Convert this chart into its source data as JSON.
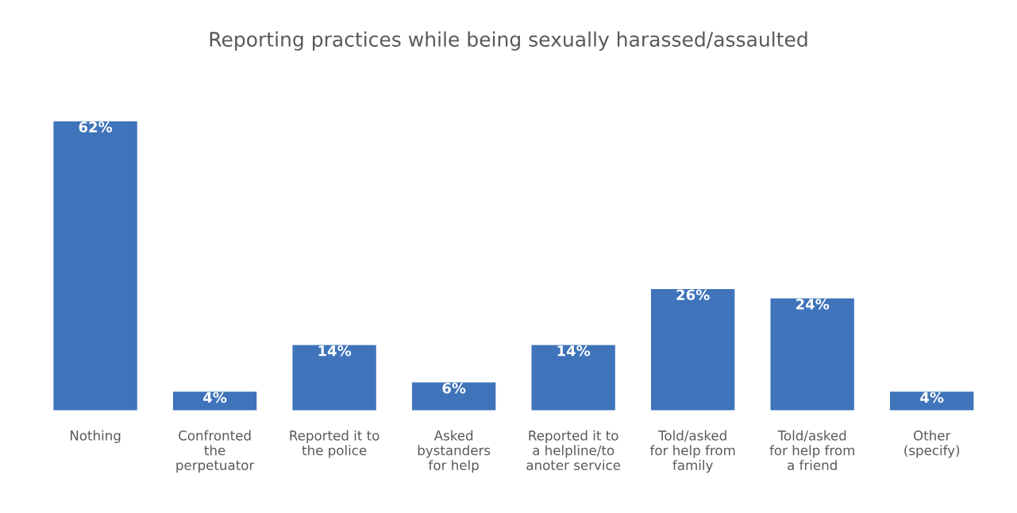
{
  "chart_data": {
    "type": "bar",
    "title": "Reporting practices while being sexually harassed/assaulted",
    "categories": [
      "Nothing",
      "Confronted\nthe\nperpetuator",
      "Reported it to\nthe police",
      "Asked\nbystanders\nfor help",
      "Reported it to\na helpline/to\nanoter service",
      "Told/asked\nfor help from\nfamily",
      "Told/asked\nfor help from\na friend",
      "Other\n(specify)"
    ],
    "values": [
      62,
      4,
      14,
      6,
      14,
      26,
      24,
      4
    ],
    "value_labels": [
      "62%",
      "4%",
      "14%",
      "6%",
      "14%",
      "26%",
      "24%",
      "4%"
    ],
    "color": "#3f74ba",
    "grid": false,
    "legend": false
  }
}
